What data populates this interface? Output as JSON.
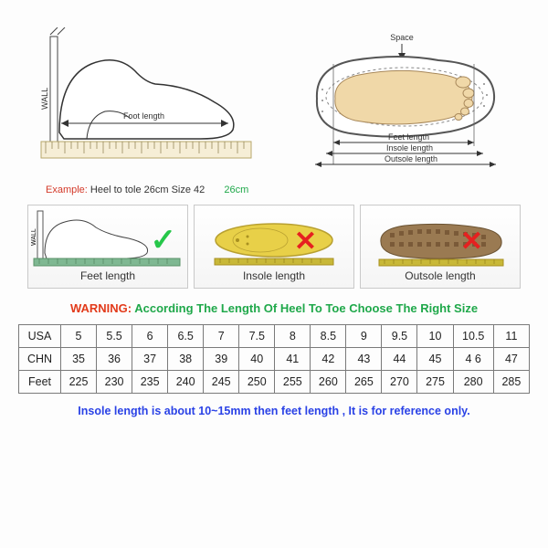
{
  "diagram_top": {
    "wall_label": "WALL",
    "foot_length_label": "Foot length",
    "space_label": "Space",
    "feet_length_label": "Feet length",
    "insole_length_label": "Insole length",
    "outsole_length_label": "Outsole length"
  },
  "example": {
    "label": "Example:",
    "text": "Heel to tole 26cm Size 42",
    "value": "26cm"
  },
  "panels": {
    "feet": {
      "label": "Feet length",
      "wall": "WALL"
    },
    "insole": {
      "label": "Insole length"
    },
    "outsole": {
      "label": "Outsole length"
    }
  },
  "warning": {
    "word": "WARNING:",
    "text": "According The Length Of Heel To Toe Choose The Right Size"
  },
  "table": {
    "headers": [
      "USA",
      "CHN",
      "Feet"
    ],
    "rows": [
      [
        "5",
        "5.5",
        "6",
        "6.5",
        "7",
        "7.5",
        "8",
        "8.5",
        "9",
        "9.5",
        "10",
        "10.5",
        "11"
      ],
      [
        "35",
        "36",
        "37",
        "38",
        "39",
        "40",
        "41",
        "42",
        "43",
        "44",
        "45",
        "4 6",
        "47"
      ],
      [
        "225",
        "230",
        "235",
        "240",
        "245",
        "250",
        "255",
        "260",
        "265",
        "270",
        "275",
        "280",
        "285"
      ]
    ]
  },
  "note": "Insole length is about 10~15mm then feet length , It is for reference only.",
  "colors": {
    "red": "#e23a1a",
    "green": "#1fa84a",
    "blue": "#2a42e6",
    "border": "#7a7a7a",
    "insole_fill": "#e8d048",
    "outsole_fill": "#9a7a52",
    "foot_fill": "#f0d8a8",
    "ruler_green": "#7fb892"
  }
}
